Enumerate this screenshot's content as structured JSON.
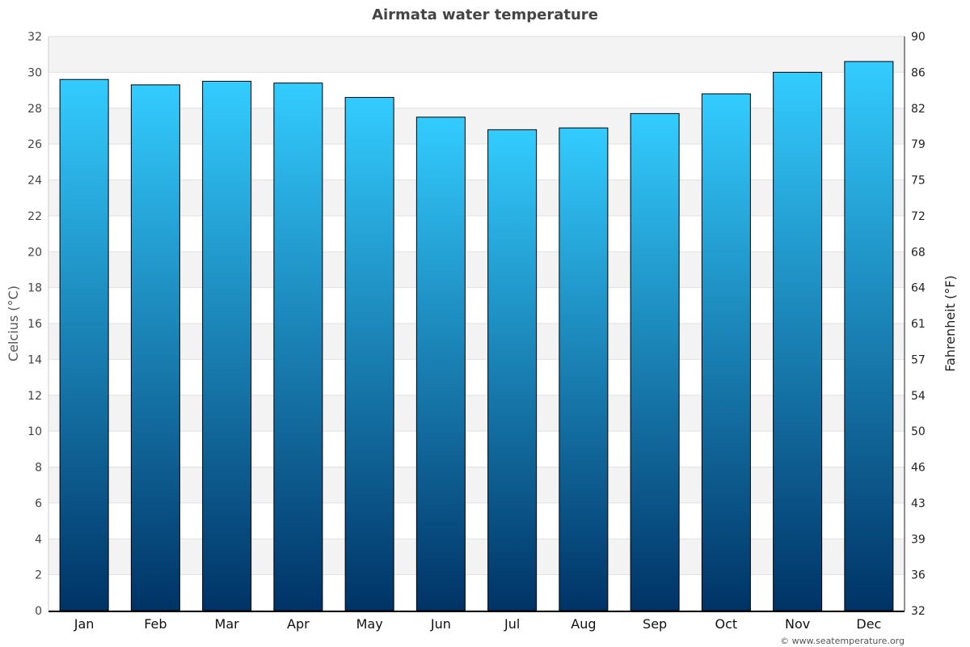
{
  "chart_data": {
    "type": "bar",
    "title": "Airmata water temperature",
    "ylabel": "Celcius (°C)",
    "ylabel_right": "Fahrenheit (°F)",
    "categories": [
      "Jan",
      "Feb",
      "Mar",
      "Apr",
      "May",
      "Jun",
      "Jul",
      "Aug",
      "Sep",
      "Oct",
      "Nov",
      "Dec"
    ],
    "values": [
      29.6,
      29.3,
      29.5,
      29.4,
      28.6,
      27.5,
      26.8,
      26.9,
      27.7,
      28.8,
      30.0,
      30.6
    ],
    "ylim": [
      0,
      32
    ],
    "yticks": [
      "0",
      "2",
      "4",
      "6",
      "8",
      "10",
      "12",
      "14",
      "16",
      "18",
      "20",
      "22",
      "24",
      "26",
      "28",
      "30",
      "32"
    ],
    "yticks_right": [
      "32",
      "36",
      "39",
      "43",
      "46",
      "50",
      "54",
      "57",
      "61",
      "64",
      "68",
      "72",
      "75",
      "79",
      "82",
      "86",
      "90"
    ],
    "grid": true,
    "colors": {
      "bar_top": "#33ccff",
      "bar_bottom": "#003366",
      "band": "#f3f3f3"
    }
  },
  "footer": "© www.seatemperature.org"
}
